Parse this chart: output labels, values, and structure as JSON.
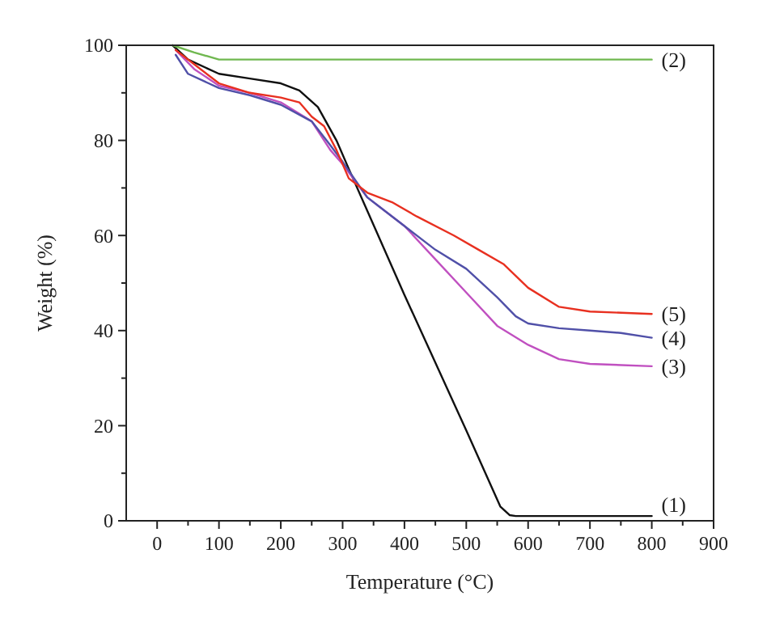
{
  "chart_data": {
    "type": "line",
    "xlabel": "Temperature (°C)",
    "ylabel": "Weight (%)",
    "xlim": [
      -50,
      900
    ],
    "ylim": [
      0,
      100
    ],
    "xticks": [
      0,
      {
        "value": 50,
        "label": null
      },
      100,
      {
        "value": 150,
        "label": null
      },
      200,
      {
        "value": 250,
        "label": null
      },
      300,
      {
        "value": 350,
        "label": null
      },
      400,
      {
        "value": 450,
        "label": null
      },
      500,
      {
        "value": 550,
        "label": null
      },
      600,
      {
        "value": 650,
        "label": null
      },
      700,
      {
        "value": 750,
        "label": null
      },
      800,
      {
        "value": 850,
        "label": null
      },
      900
    ],
    "yticks": [
      0,
      {
        "value": 10,
        "label": null
      },
      20,
      {
        "value": 30,
        "label": null
      },
      40,
      {
        "value": 50,
        "label": null
      },
      60,
      {
        "value": 70,
        "label": null
      },
      80,
      {
        "value": 90,
        "label": null
      },
      100
    ],
    "grid": false,
    "line_style": "solid",
    "series": [
      {
        "name": "(1)",
        "color": "#101010",
        "x": [
          25,
          50,
          100,
          150,
          200,
          230,
          260,
          290,
          310,
          400,
          500,
          555,
          570,
          580,
          800
        ],
        "values": [
          100,
          97,
          94,
          93,
          92,
          90.5,
          87,
          80,
          74,
          47.5,
          19,
          3,
          1.2,
          1,
          1
        ]
      },
      {
        "name": "(2)",
        "color": "#70b850",
        "x": [
          25,
          60,
          100,
          800
        ],
        "values": [
          100,
          98.5,
          97,
          97
        ]
      },
      {
        "name": "(3)",
        "color": "#c050c0",
        "x": [
          30,
          60,
          100,
          150,
          200,
          250,
          280,
          300,
          340,
          400,
          450,
          500,
          550,
          600,
          650,
          700,
          800
        ],
        "values": [
          99,
          95,
          91.5,
          90,
          88,
          84,
          78,
          75,
          68,
          62,
          55,
          48,
          41,
          37,
          34,
          33,
          32.5
        ]
      },
      {
        "name": "(4)",
        "color": "#5050a8",
        "x": [
          30,
          50,
          100,
          150,
          200,
          250,
          280,
          300,
          340,
          400,
          450,
          500,
          550,
          580,
          600,
          650,
          700,
          750,
          800
        ],
        "values": [
          98,
          94,
          91,
          89.5,
          87.5,
          84,
          79,
          75.5,
          68,
          62,
          57,
          53,
          47,
          43,
          41.5,
          40.5,
          40,
          39.5,
          38.5
        ]
      },
      {
        "name": "(5)",
        "color": "#e83020",
        "x": [
          30,
          60,
          100,
          150,
          200,
          230,
          250,
          270,
          290,
          310,
          340,
          380,
          420,
          480,
          520,
          560,
          600,
          650,
          700,
          800
        ],
        "values": [
          99,
          96,
          92,
          90,
          89,
          88,
          85,
          83,
          78,
          72,
          69,
          67,
          64,
          60,
          57,
          54,
          49,
          45,
          44,
          43.5
        ]
      }
    ]
  }
}
